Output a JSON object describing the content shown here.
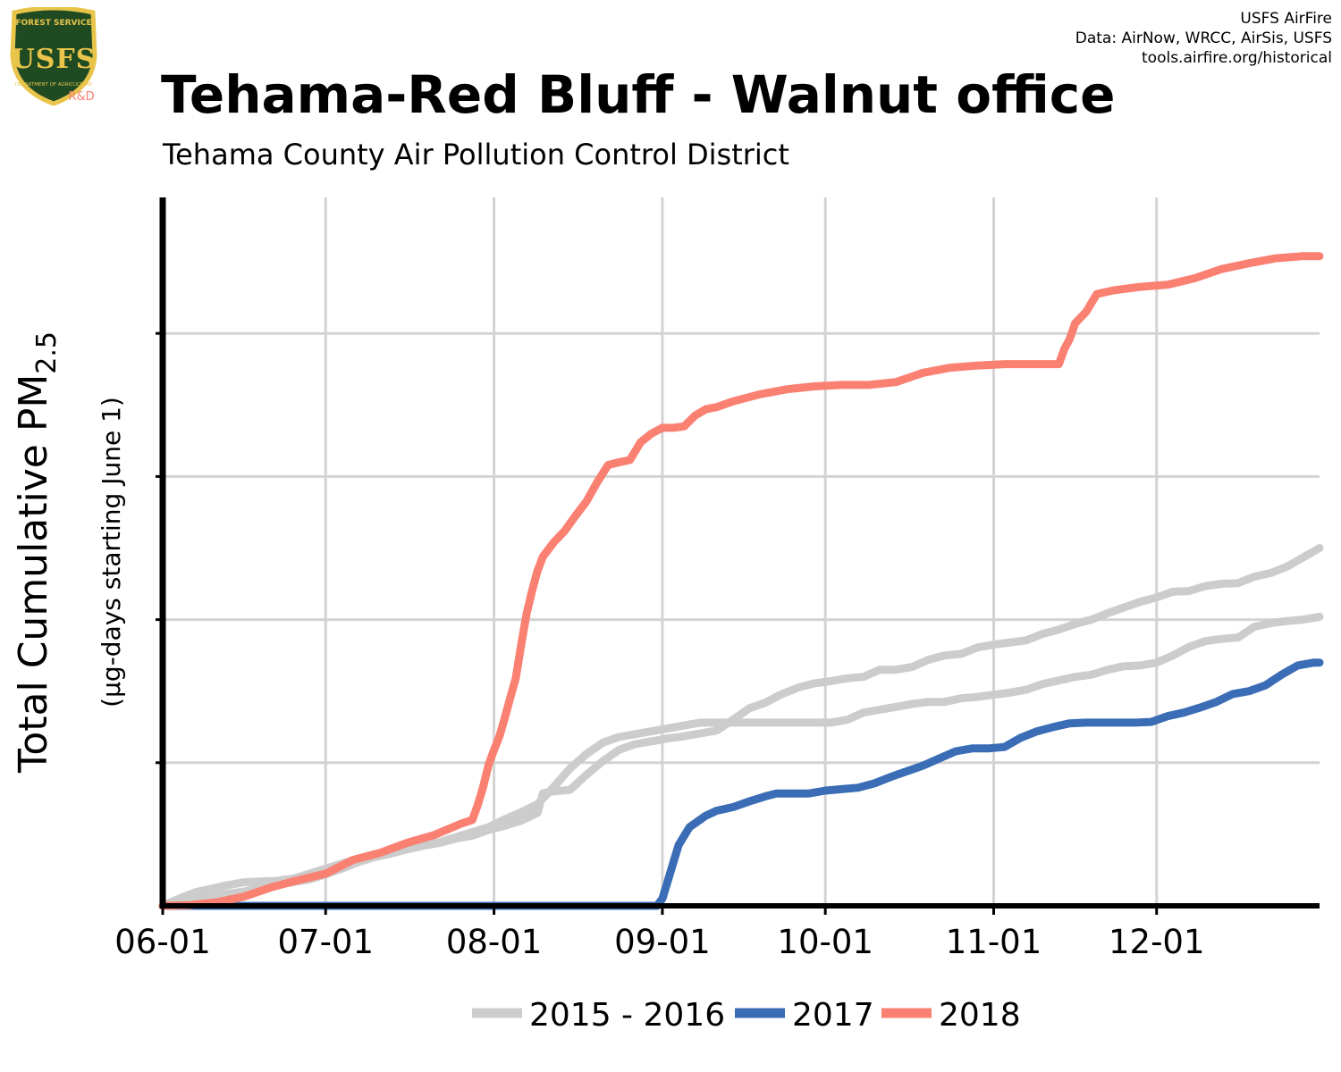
{
  "logo": {
    "top_text": "FOREST SERVICE",
    "letters": "USFS",
    "bottom_text": "DEPARTMENT OF AGRICULTURE",
    "badge": "R&D"
  },
  "credits": {
    "line1": "USFS AirFire",
    "line2": "Data: AirNow, WRCC, AirSis, USFS",
    "line3": "tools.airfire.org/historical"
  },
  "colors": {
    "gray": "#cccccc",
    "blue": "#3a6db5",
    "salmon": "#fa8072",
    "grid": "#d3d3d3",
    "logo_green": "#1f4a22",
    "logo_gold": "#e8c44a"
  },
  "chart_data": {
    "type": "line",
    "title": "Tehama-Red Bluff - Walnut office",
    "subtitle": "Tehama County Air Pollution Control District",
    "ylabel_main": "Total Cumulative PM",
    "ylabel_sub": "2.5",
    "ylabel_units": "(µg-days starting June 1)",
    "x_ticks": [
      "06-01",
      "07-01",
      "08-01",
      "09-01",
      "10-01",
      "11-01",
      "12-01"
    ],
    "x_tick_days": [
      0,
      30,
      61,
      92,
      122,
      153,
      183
    ],
    "xlim_days": [
      0,
      213
    ],
    "ylim": [
      0,
      1000
    ],
    "y_gridlines": [
      200,
      400,
      600,
      800
    ],
    "grid": true,
    "legend_placement": "bottom",
    "legend": [
      "2015 - 2016",
      "2017",
      "2018"
    ],
    "series": [
      {
        "name": "2015 - 2016",
        "legend_index": 0,
        "color": "#cccccc",
        "x": [
          0,
          3,
          6,
          9,
          12,
          15,
          18,
          21,
          24,
          27,
          30,
          33,
          36,
          39,
          42,
          45,
          48,
          51,
          54,
          57,
          60,
          63,
          66,
          69,
          70,
          72,
          75,
          78,
          81,
          84,
          87,
          90,
          93,
          96,
          99,
          102,
          105,
          108,
          111,
          114,
          117,
          120,
          123,
          126,
          129,
          132,
          135,
          138,
          141,
          144,
          147,
          150,
          153,
          156,
          159,
          162,
          165,
          168,
          171,
          174,
          177,
          180,
          183,
          186,
          189,
          192,
          195,
          198,
          201,
          204,
          207,
          210,
          213
        ],
        "y": [
          0,
          10,
          19,
          24,
          29,
          33,
          34,
          35,
          38,
          45,
          52,
          59,
          66,
          72,
          74,
          79,
          84,
          88,
          94,
          98,
          106,
          112,
          119,
          130,
          157,
          160,
          162,
          183,
          202,
          218,
          226,
          230,
          234,
          237,
          241,
          245,
          260,
          276,
          284,
          296,
          305,
          311,
          314,
          318,
          320,
          330,
          330,
          334,
          344,
          350,
          352,
          361,
          365,
          368,
          371,
          380,
          386,
          394,
          400,
          409,
          417,
          425,
          431,
          439,
          440,
          447,
          450,
          451,
          460,
          465,
          474,
          487,
          500
        ]
      },
      {
        "name": "",
        "legend_index": null,
        "color": "#cccccc",
        "x": [
          0,
          3,
          6,
          9,
          12,
          15,
          18,
          21,
          24,
          27,
          30,
          33,
          36,
          39,
          42,
          45,
          48,
          51,
          54,
          57,
          60,
          63,
          66,
          69,
          70,
          72,
          75,
          78,
          81,
          84,
          87,
          90,
          93,
          96,
          99,
          102,
          105,
          108,
          111,
          114,
          117,
          120,
          123,
          126,
          129,
          132,
          135,
          138,
          141,
          144,
          147,
          150,
          153,
          156,
          159,
          162,
          165,
          168,
          171,
          174,
          177,
          180,
          183,
          186,
          189,
          192,
          195,
          198,
          201,
          204,
          207,
          210,
          213
        ],
        "y": [
          0,
          4,
          9,
          13,
          17,
          20,
          25,
          30,
          33,
          37,
          44,
          52,
          61,
          68,
          73,
          79,
          84,
          89,
          96,
          103,
          110,
          121,
          131,
          142,
          150,
          166,
          192,
          212,
          228,
          236,
          240,
          244,
          248,
          252,
          256,
          256,
          256,
          256,
          256,
          256,
          256,
          256,
          256,
          260,
          270,
          274,
          278,
          282,
          285,
          285,
          290,
          292,
          295,
          298,
          302,
          310,
          315,
          320,
          323,
          330,
          335,
          336,
          340,
          350,
          362,
          370,
          373,
          375,
          390,
          395,
          398,
          400,
          404
        ]
      },
      {
        "name": "2017",
        "legend_index": 1,
        "color": "#3a6db5",
        "x": [
          0,
          30,
          60,
          91,
          92,
          93,
          95,
          97,
          100,
          102,
          105,
          108,
          111,
          113,
          116,
          119,
          122,
          125,
          128,
          131,
          134,
          137,
          140,
          143,
          146,
          149,
          152,
          155,
          158,
          161,
          164,
          167,
          170,
          173,
          176,
          179,
          182,
          185,
          188,
          191,
          194,
          197,
          200,
          203,
          206,
          209,
          212,
          213
        ],
        "y": [
          0,
          0,
          0,
          0,
          10,
          35,
          85,
          110,
          126,
          133,
          138,
          146,
          153,
          157,
          157,
          157,
          161,
          163,
          165,
          171,
          180,
          188,
          196,
          206,
          216,
          220,
          220,
          222,
          235,
          244,
          250,
          255,
          256,
          256,
          256,
          256,
          257,
          265,
          270,
          277,
          285,
          296,
          300,
          308,
          323,
          336,
          340,
          340
        ]
      },
      {
        "name": "2018",
        "legend_index": 2,
        "color": "#fa8072",
        "x": [
          0,
          5,
          10,
          15,
          20,
          25,
          30,
          35,
          40,
          45,
          50,
          55,
          57,
          58,
          59,
          60,
          61,
          62,
          63,
          64,
          65,
          66,
          67,
          68,
          69,
          70,
          72,
          74,
          76,
          78,
          80,
          82,
          84,
          86,
          88,
          90,
          92,
          94,
          96,
          98,
          100,
          102,
          105,
          110,
          115,
          120,
          125,
          130,
          135,
          140,
          145,
          150,
          155,
          160,
          165,
          166,
          167,
          168,
          170,
          172,
          175,
          180,
          185,
          190,
          195,
          200,
          205,
          210,
          213
        ],
        "y": [
          0,
          1,
          5,
          13,
          26,
          36,
          45,
          64,
          74,
          88,
          99,
          115,
          120,
          141,
          166,
          197,
          218,
          237,
          263,
          291,
          318,
          365,
          408,
          440,
          468,
          488,
          508,
          524,
          545,
          565,
          592,
          616,
          620,
          623,
          648,
          660,
          668,
          668,
          670,
          685,
          694,
          697,
          705,
          715,
          722,
          726,
          728,
          728,
          732,
          745,
          752,
          755,
          757,
          757,
          757,
          778,
          792,
          814,
          830,
          855,
          860,
          865,
          868,
          877,
          890,
          898,
          905,
          908,
          908
        ]
      }
    ]
  }
}
